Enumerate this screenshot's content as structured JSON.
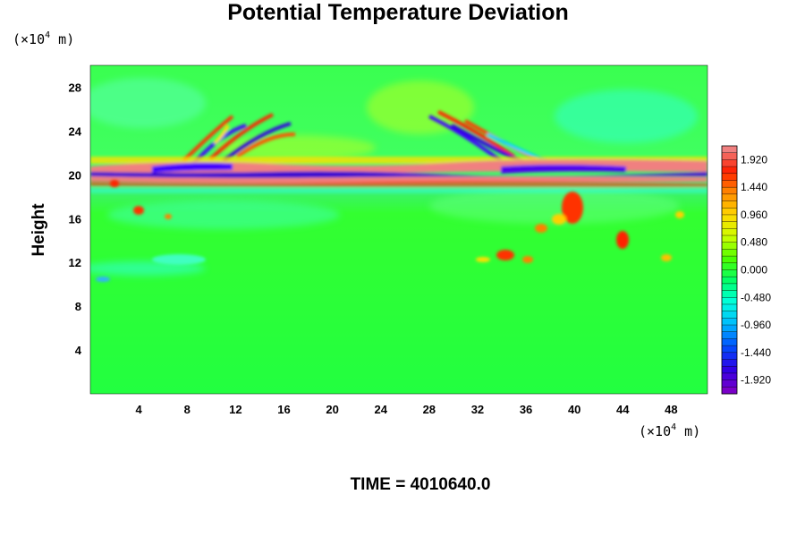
{
  "chart_data": {
    "type": "heatmap",
    "title": "Potential Temperature Deviation",
    "ylabel": "Height",
    "y_unit_prefix": "(×10",
    "y_unit_exp": "4",
    "y_unit_suffix": " m)",
    "x_unit_prefix": "(×10",
    "x_unit_exp": "4",
    "x_unit_suffix": " m)",
    "xlim": [
      0,
      51
    ],
    "ylim": [
      0,
      30
    ],
    "x_ticks": [
      4,
      8,
      12,
      16,
      20,
      24,
      28,
      32,
      36,
      40,
      44,
      48
    ],
    "y_ticks": [
      4,
      8,
      12,
      16,
      20,
      24,
      28
    ],
    "colorbar": {
      "range": [
        -2.16,
        2.16
      ],
      "tick_values": [
        1.92,
        1.44,
        0.96,
        0.48,
        0.0,
        -0.48,
        -0.96,
        -1.44,
        -1.92
      ],
      "tick_labels": [
        "1.920",
        "1.440",
        "0.960",
        "0.480",
        "0.000",
        "-0.480",
        "-0.960",
        "-1.440",
        "-1.920"
      ],
      "colors": [
        "#7a00c8",
        "#2c00e6",
        "#0050ff",
        "#00b8ff",
        "#00ffe0",
        "#00ff6a",
        "#4cff00",
        "#ccff00",
        "#ffd800",
        "#ff8c00",
        "#ff2000",
        "#f08080"
      ]
    },
    "background_value": 0.05,
    "features": [
      {
        "x": 25,
        "y": 20.6,
        "value": 2.1
      },
      {
        "x": 25,
        "y": 19.8,
        "value": -1.9
      },
      {
        "x": 15,
        "y": 23.5,
        "value": 1.9
      },
      {
        "x": 31,
        "y": 22.5,
        "value": -1.8
      },
      {
        "x": 40,
        "y": 17,
        "value": 1.4
      },
      {
        "x": 44.5,
        "y": 13.5,
        "value": 1.3
      },
      {
        "x": 3.5,
        "y": 18,
        "value": 1.4
      },
      {
        "x": 12,
        "y": 11.5,
        "value": -0.6
      }
    ]
  },
  "footer": {
    "time_label": "TIME = 4010640.0"
  }
}
